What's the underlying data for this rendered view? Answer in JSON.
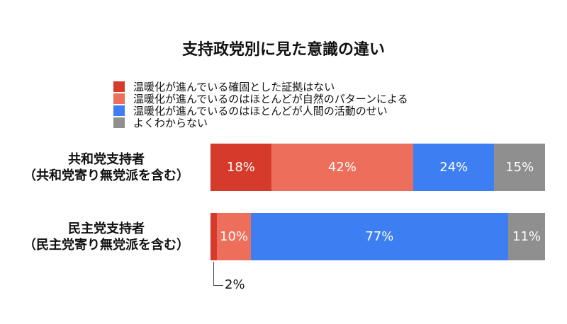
{
  "chart_data": {
    "type": "bar",
    "orientation": "horizontal",
    "stacked": true,
    "title": "支持政党別に見た意識の違い",
    "categories": [
      "共和党支持者\n（共和党寄り無党派を含む）",
      "民主党支持者\n（民主党寄り無党派を含む）"
    ],
    "category_lines": [
      [
        "共和党支持者",
        "（共和党寄り無党派を含む）"
      ],
      [
        "民主党支持者",
        "（民主党寄り無党派を含む）"
      ]
    ],
    "series": [
      {
        "name": "温暖化が進んでいる確固とした証拠はない",
        "color": "#d63a2a",
        "values": [
          18,
          2
        ],
        "labels": [
          "18%",
          ""
        ]
      },
      {
        "name": "温暖化が進んでいるのはほとんどが自然のパターンによる",
        "color": "#ec6e5b",
        "values": [
          42,
          10
        ],
        "labels": [
          "42%",
          "10%"
        ]
      },
      {
        "name": "温暖化が進んでいるのはほとんどが人間の活動のせい",
        "color": "#3d7ef2",
        "values": [
          24,
          77
        ],
        "labels": [
          "24%",
          "77%"
        ]
      },
      {
        "name": "よくわからない",
        "color": "#8f8f8f",
        "values": [
          15,
          11
        ],
        "labels": [
          "15%",
          "11%"
        ]
      }
    ],
    "annotations": [
      {
        "text": "2%"
      }
    ],
    "legend_position": "top",
    "grid": false
  }
}
